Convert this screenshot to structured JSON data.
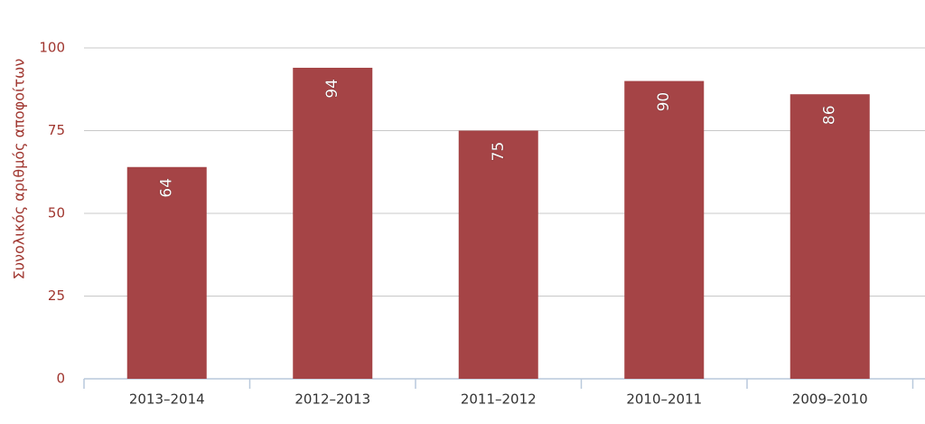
{
  "chart_data": {
    "type": "bar",
    "y_axis_label": "Συνολικός αριθμός αποφοίτων",
    "categories": [
      "2013–2014",
      "2012–2013",
      "2011–2012",
      "2010–2011",
      "2009–2010"
    ],
    "values": [
      64,
      94,
      75,
      90,
      86
    ],
    "color": "#a54446",
    "ylim": [
      0,
      100
    ],
    "yticks": [
      0,
      25,
      50,
      75,
      100
    ],
    "grid": true
  }
}
